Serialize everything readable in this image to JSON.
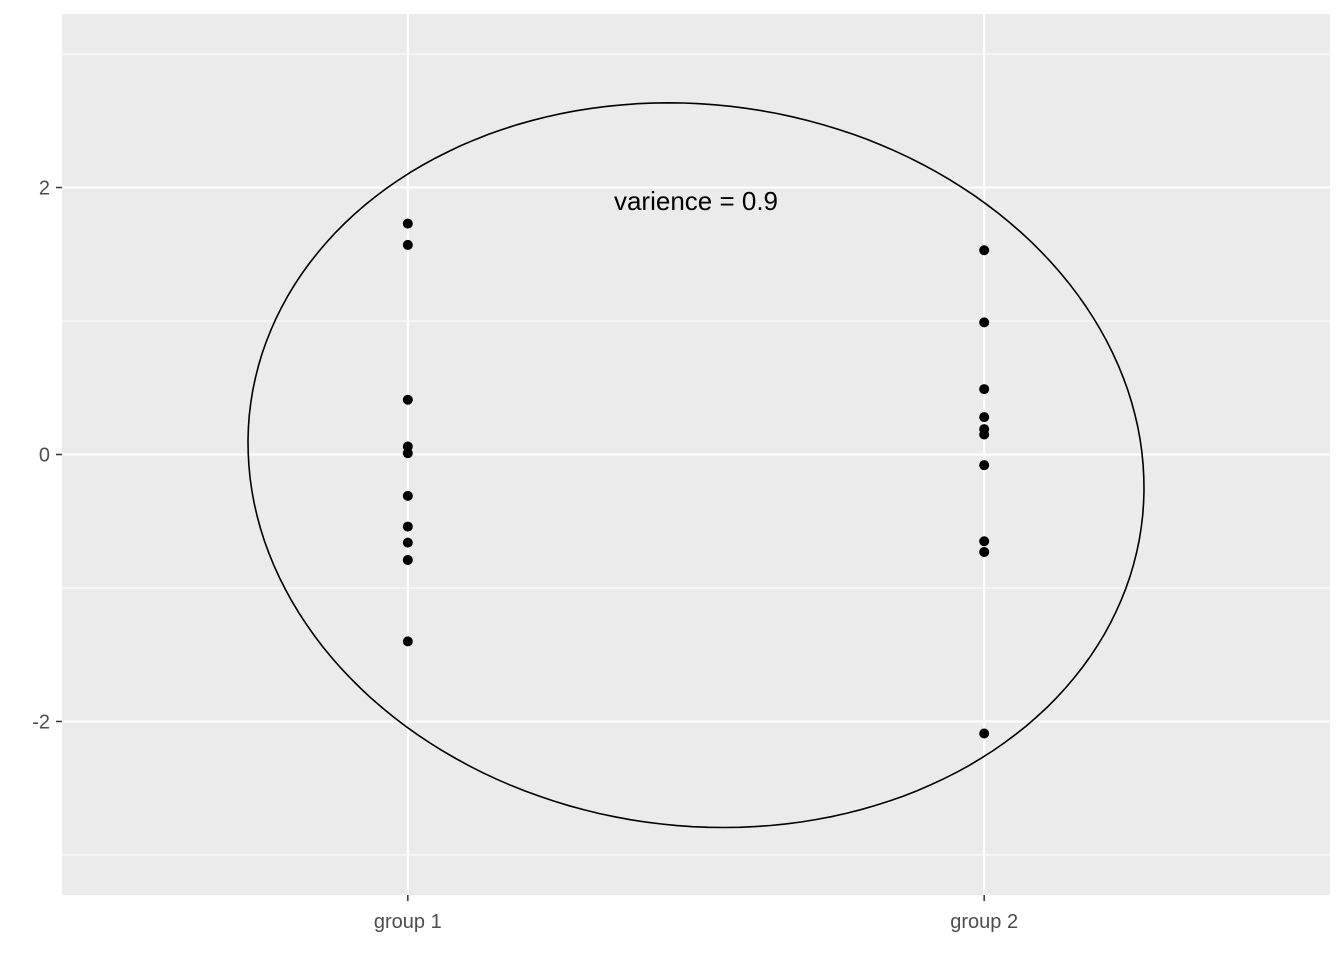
{
  "chart_data": {
    "type": "scatter",
    "title": "",
    "xlabel": "",
    "ylabel": "",
    "categories": [
      "group 1",
      "group 2"
    ],
    "ylim": [
      -3.3,
      3.3
    ],
    "y_ticks": [
      "-2",
      "0",
      "2"
    ],
    "grid": true,
    "background": "#ebebeb",
    "grid_color": "#ffffff",
    "point_color": "#000000",
    "series": [
      {
        "category": "group 1",
        "values": [
          1.73,
          1.57,
          0.41,
          0.06,
          0.01,
          -0.31,
          -0.54,
          -0.66,
          -0.79,
          -1.4
        ]
      },
      {
        "category": "group 2",
        "values": [
          1.53,
          0.99,
          0.49,
          0.28,
          0.19,
          0.15,
          -0.08,
          -0.65,
          -0.73,
          -2.09
        ]
      }
    ],
    "ellipse": {
      "center": [
        1.5,
        -0.08
      ],
      "semi_axes": [
        0.78,
        2.7
      ],
      "rotation_deg": -8
    },
    "annotation": {
      "text": "varience = 0.9",
      "x": 1.5,
      "y": 1.9
    }
  }
}
